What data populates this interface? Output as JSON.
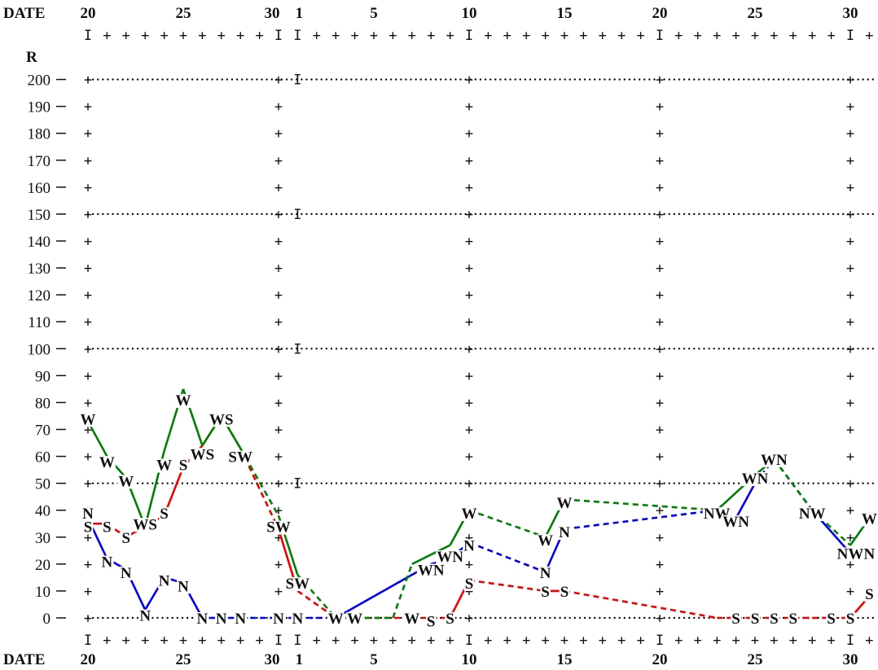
{
  "chart_data": {
    "type": "line",
    "x_axis_label": "DATE",
    "y_axis_label": "R",
    "y_ticks": [
      200,
      190,
      180,
      170,
      160,
      150,
      140,
      130,
      120,
      110,
      100,
      90,
      80,
      70,
      60,
      50,
      40,
      30,
      20,
      10,
      0
    ],
    "date_labels": [
      "20",
      "25",
      "30",
      "1",
      "5",
      "10",
      "15",
      "20",
      "25",
      "30"
    ],
    "ylim": [
      0,
      200
    ],
    "grid": "dotted lines at 0, 50, 100, 150, 200",
    "colors": {
      "N": "#0000ee",
      "S": "#ee0000",
      "W": "#008000"
    },
    "series": [
      {
        "name": "N",
        "points": [
          {
            "d": 20,
            "y": 37
          },
          {
            "d": 21,
            "y": 22
          },
          {
            "d": 22,
            "y": 18
          },
          {
            "d": 23,
            "y": 3
          },
          {
            "d": 24,
            "y": 15
          },
          {
            "d": 25,
            "y": 13
          },
          {
            "d": 26,
            "y": 0
          },
          {
            "d": 27,
            "y": 0
          },
          {
            "d": 28,
            "y": 0
          },
          {
            "d": 30,
            "y": 0
          },
          {
            "d": 31,
            "y": 0
          },
          {
            "d": 32,
            "y": 0
          },
          {
            "d": 33,
            "y": 0
          },
          {
            "d": 38,
            "y": 20
          },
          {
            "d": 39,
            "y": 22
          },
          {
            "d": 40,
            "y": 28
          },
          {
            "d": 44,
            "y": 17
          },
          {
            "d": 45,
            "y": 33
          },
          {
            "d": 53,
            "y": 40
          },
          {
            "d": 54,
            "y": 37
          },
          {
            "d": 55,
            "y": 50
          },
          {
            "d": 56,
            "y": 59
          },
          {
            "d": 58,
            "y": 40
          },
          {
            "d": 60,
            "y": 24
          },
          {
            "d": 61,
            "y": 24
          }
        ]
      },
      {
        "name": "S",
        "points": [
          {
            "d": 20,
            "y": 35
          },
          {
            "d": 21,
            "y": 35
          },
          {
            "d": 22,
            "y": 30
          },
          {
            "d": 24,
            "y": 38
          },
          {
            "d": 25,
            "y": 56
          },
          {
            "d": 26,
            "y": 64
          },
          {
            "d": 27,
            "y": 75
          },
          {
            "d": 28,
            "y": 63
          },
          {
            "d": 30,
            "y": 33
          },
          {
            "d": 31,
            "y": 10
          },
          {
            "d": 33,
            "y": 0
          },
          {
            "d": 37,
            "y": 0
          },
          {
            "d": 39,
            "y": 0
          },
          {
            "d": 40,
            "y": 14
          },
          {
            "d": 44,
            "y": 10
          },
          {
            "d": 45,
            "y": 10
          },
          {
            "d": 53,
            "y": 0
          },
          {
            "d": 54,
            "y": 0
          },
          {
            "d": 55,
            "y": 0
          },
          {
            "d": 56,
            "y": 0
          },
          {
            "d": 58,
            "y": 0
          },
          {
            "d": 60,
            "y": 0
          },
          {
            "d": 61,
            "y": 8
          }
        ]
      },
      {
        "name": "W",
        "points": [
          {
            "d": 20,
            "y": 73
          },
          {
            "d": 21,
            "y": 60
          },
          {
            "d": 22,
            "y": 52
          },
          {
            "d": 23,
            "y": 34
          },
          {
            "d": 24,
            "y": 62
          },
          {
            "d": 25,
            "y": 85
          },
          {
            "d": 26,
            "y": 64
          },
          {
            "d": 27,
            "y": 75
          },
          {
            "d": 28,
            "y": 63
          },
          {
            "d": 30,
            "y": 38
          },
          {
            "d": 31,
            "y": 16
          },
          {
            "d": 33,
            "y": 0
          },
          {
            "d": 34,
            "y": 0
          },
          {
            "d": 36,
            "y": 0
          },
          {
            "d": 37,
            "y": 20
          },
          {
            "d": 39,
            "y": 27
          },
          {
            "d": 40,
            "y": 40
          },
          {
            "d": 44,
            "y": 30
          },
          {
            "d": 45,
            "y": 44
          },
          {
            "d": 53,
            "y": 40
          },
          {
            "d": 55,
            "y": 53
          },
          {
            "d": 56,
            "y": 59
          },
          {
            "d": 58,
            "y": 40
          },
          {
            "d": 60,
            "y": 27
          },
          {
            "d": 61,
            "y": 37
          }
        ]
      }
    ],
    "segment_styles": {
      "N": [
        "s",
        "s",
        "s",
        "s",
        "s",
        "s",
        "s",
        "s",
        "d",
        "d",
        "d",
        "d",
        "s",
        "d",
        "s",
        "d",
        "s",
        "d",
        "s",
        "s",
        "d",
        "d",
        "s",
        "s"
      ],
      "S": [
        "s",
        "d",
        "s",
        "s",
        "s",
        "s",
        "d",
        "d",
        "s",
        "d",
        "d",
        "d",
        "s",
        "d",
        "s",
        "d",
        "d",
        "d",
        "d",
        "d",
        "d",
        "s"
      ],
      "W": [
        "s",
        "s",
        "s",
        "s",
        "s",
        "s",
        "s",
        "s",
        "d",
        "s",
        "d",
        "d",
        "d",
        "d",
        "s",
        "s",
        "d",
        "s",
        "d",
        "s",
        "s",
        "d",
        "d",
        "s"
      ]
    },
    "markers": [
      {
        "d": 20,
        "y": 74,
        "t": "W"
      },
      {
        "d": 20,
        "y": 39,
        "t": "N"
      },
      {
        "d": 20,
        "y": 34,
        "t": "S"
      },
      {
        "d": 21,
        "y": 34,
        "t": "S"
      },
      {
        "d": 21,
        "y": 58,
        "t": "W"
      },
      {
        "d": 21,
        "y": 21,
        "t": "N"
      },
      {
        "d": 22,
        "y": 51,
        "t": "W"
      },
      {
        "d": 22,
        "y": 30,
        "t": "S"
      },
      {
        "d": 22,
        "y": 17,
        "t": "N"
      },
      {
        "d": 23,
        "y": 35,
        "t": "WS"
      },
      {
        "d": 23,
        "y": 1,
        "t": "N"
      },
      {
        "d": 24,
        "y": 57,
        "t": "W"
      },
      {
        "d": 24,
        "y": 39,
        "t": "S"
      },
      {
        "d": 24,
        "y": 14,
        "t": "N"
      },
      {
        "d": 25,
        "y": 81,
        "t": "W"
      },
      {
        "d": 25,
        "y": 57,
        "t": "S"
      },
      {
        "d": 25,
        "y": 12,
        "t": "N"
      },
      {
        "d": 26,
        "y": 61,
        "t": "WS"
      },
      {
        "d": 26,
        "y": 0,
        "t": "N"
      },
      {
        "d": 27,
        "y": 74,
        "t": "WS"
      },
      {
        "d": 27,
        "y": 0,
        "t": "N"
      },
      {
        "d": 28,
        "y": 0,
        "t": "N"
      },
      {
        "d": 28,
        "y": 60,
        "t": "SW"
      },
      {
        "d": 30,
        "y": 34,
        "t": "SW"
      },
      {
        "d": 30,
        "y": 0,
        "t": "N"
      },
      {
        "d": 31,
        "y": 13,
        "t": "SW"
      },
      {
        "d": 31,
        "y": 0,
        "t": "N"
      },
      {
        "d": 33,
        "y": 0,
        "t": "W"
      },
      {
        "d": 34,
        "y": 0,
        "t": "W"
      },
      {
        "d": 37,
        "y": 0,
        "t": "W"
      },
      {
        "d": 38,
        "y": 18,
        "t": "WN"
      },
      {
        "d": 39,
        "y": 23,
        "t": "WN"
      },
      {
        "d": 39,
        "y": 0,
        "t": "S"
      },
      {
        "d": 38,
        "y": -1,
        "t": "S"
      },
      {
        "d": 40,
        "y": 39,
        "t": "W"
      },
      {
        "d": 40,
        "y": 27,
        "t": "N"
      },
      {
        "d": 40,
        "y": 13,
        "t": "S"
      },
      {
        "d": 44,
        "y": 29,
        "t": "W"
      },
      {
        "d": 44,
        "y": 17,
        "t": "N"
      },
      {
        "d": 44,
        "y": 10,
        "t": "S"
      },
      {
        "d": 45,
        "y": 43,
        "t": "W"
      },
      {
        "d": 45,
        "y": 32,
        "t": "N"
      },
      {
        "d": 45,
        "y": 10,
        "t": "S"
      },
      {
        "d": 53,
        "y": 39,
        "t": "NW"
      },
      {
        "d": 54,
        "y": 0,
        "t": "S"
      },
      {
        "d": 54,
        "y": 36,
        "t": "WN"
      },
      {
        "d": 55,
        "y": 0,
        "t": "S"
      },
      {
        "d": 55,
        "y": 52,
        "t": "WN"
      },
      {
        "d": 56,
        "y": 0,
        "t": "S"
      },
      {
        "d": 56,
        "y": 59,
        "t": "WN"
      },
      {
        "d": 57,
        "y": 0,
        "t": "S"
      },
      {
        "d": 58,
        "y": 39,
        "t": "NW"
      },
      {
        "d": 59,
        "y": 0,
        "t": "S"
      },
      {
        "d": 60,
        "y": 24,
        "t": "NW"
      },
      {
        "d": 60,
        "y": 0,
        "t": "S"
      },
      {
        "d": 61,
        "y": 37,
        "t": "W"
      },
      {
        "d": 61,
        "y": 24,
        "t": "N"
      },
      {
        "d": 61,
        "y": 9,
        "t": "S"
      }
    ]
  }
}
